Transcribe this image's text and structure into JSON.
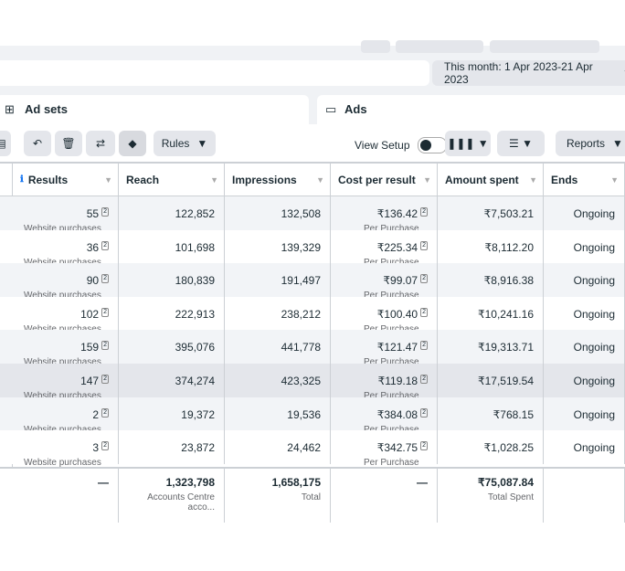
{
  "toolbar": {
    "date_range": "This month: 1 Apr 2023-21 Apr 2023",
    "tabs": [
      "Ad sets",
      "Ads"
    ],
    "rules": "Rules",
    "view_setup": "View Setup",
    "reports": "Reports"
  },
  "table": {
    "headers": [
      "Results",
      "Reach",
      "Impressions",
      "Cost per result",
      "Amount spent",
      "Ends"
    ],
    "rows": [
      [
        "55",
        "2",
        "Website purchases",
        "122,852",
        "132,508",
        "₹136.42",
        "2",
        "Per Purchase",
        "₹7,503.21",
        "Ongoing"
      ],
      [
        "36",
        "2",
        "Website purchases",
        "101,698",
        "139,329",
        "₹225.34",
        "2",
        "Per Purchase",
        "₹8,112.20",
        "Ongoing"
      ],
      [
        "90",
        "2",
        "Website purchases",
        "180,839",
        "191,497",
        "₹99.07",
        "2",
        "Per Purchase",
        "₹8,916.38",
        "Ongoing"
      ],
      [
        "102",
        "2",
        "Website purchases",
        "222,913",
        "238,212",
        "₹100.40",
        "2",
        "Per Purchase",
        "₹10,241.16",
        "Ongoing"
      ],
      [
        "159",
        "2",
        "Website purchases",
        "395,076",
        "441,778",
        "₹121.47",
        "2",
        "Per Purchase",
        "₹19,313.71",
        "Ongoing"
      ],
      [
        "147",
        "2",
        "Website purchases",
        "374,274",
        "423,325",
        "₹119.18",
        "2",
        "Per Purchase",
        "₹17,519.54",
        "Ongoing"
      ],
      [
        "2",
        "2",
        "Website purchases",
        "19,372",
        "19,536",
        "₹384.08",
        "2",
        "Per Purchase",
        "₹768.15",
        "Ongoing"
      ],
      [
        "3",
        "2",
        "Website purchases",
        "23,872",
        "24,462",
        "₹342.75",
        "2",
        "Per Purchase",
        "₹1,028.25",
        "Ongoing"
      ]
    ],
    "footer": {
      "results": "—",
      "reach": "1,323,798",
      "reach_label": "Accounts Centre acco...",
      "impressions": "1,658,175",
      "impressions_label": "Total",
      "cost": "—",
      "amount": "₹75,087.84",
      "amount_label": "Total Spent"
    }
  }
}
